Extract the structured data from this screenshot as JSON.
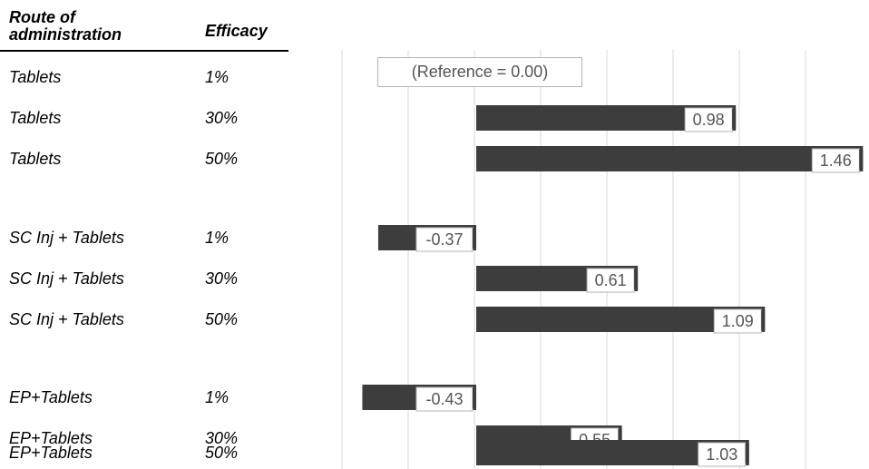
{
  "headers": {
    "route_line1": "Route of",
    "route_line2": "administration",
    "efficacy": "Efficacy"
  },
  "reference_label": "(Reference = 0.00)",
  "colors": {
    "bar": "#3d3d3d",
    "grid": "#d9d9d9",
    "label_border": "#b3b3b3",
    "label_text": "#555555"
  },
  "chart_data": {
    "type": "bar",
    "orientation": "horizontal",
    "categories": [
      {
        "route": "Tablets",
        "efficacy": "1%"
      },
      {
        "route": "Tablets",
        "efficacy": "30%"
      },
      {
        "route": "Tablets",
        "efficacy": "50%"
      },
      {
        "route": "SC Inj + Tablets",
        "efficacy": "1%"
      },
      {
        "route": "SC Inj + Tablets",
        "efficacy": "30%"
      },
      {
        "route": "SC Inj + Tablets",
        "efficacy": "50%"
      },
      {
        "route": "EP+Tablets",
        "efficacy": "1%"
      },
      {
        "route": "EP+Tablets",
        "efficacy": "30%"
      },
      {
        "route": "EP+Tablets",
        "efficacy": "50%"
      }
    ],
    "values": [
      0,
      0.98,
      1.46,
      -0.37,
      0.61,
      1.09,
      -0.43,
      0.55,
      1.03
    ],
    "value_labels": [
      "",
      "0.98",
      "1.46",
      "-0.37",
      "0.61",
      "1.09",
      "-0.43",
      "0.55",
      "1.03"
    ],
    "xlim": [
      -0.5,
      1.5
    ],
    "grid_step": 0.25,
    "grid": true,
    "legend": "none"
  }
}
